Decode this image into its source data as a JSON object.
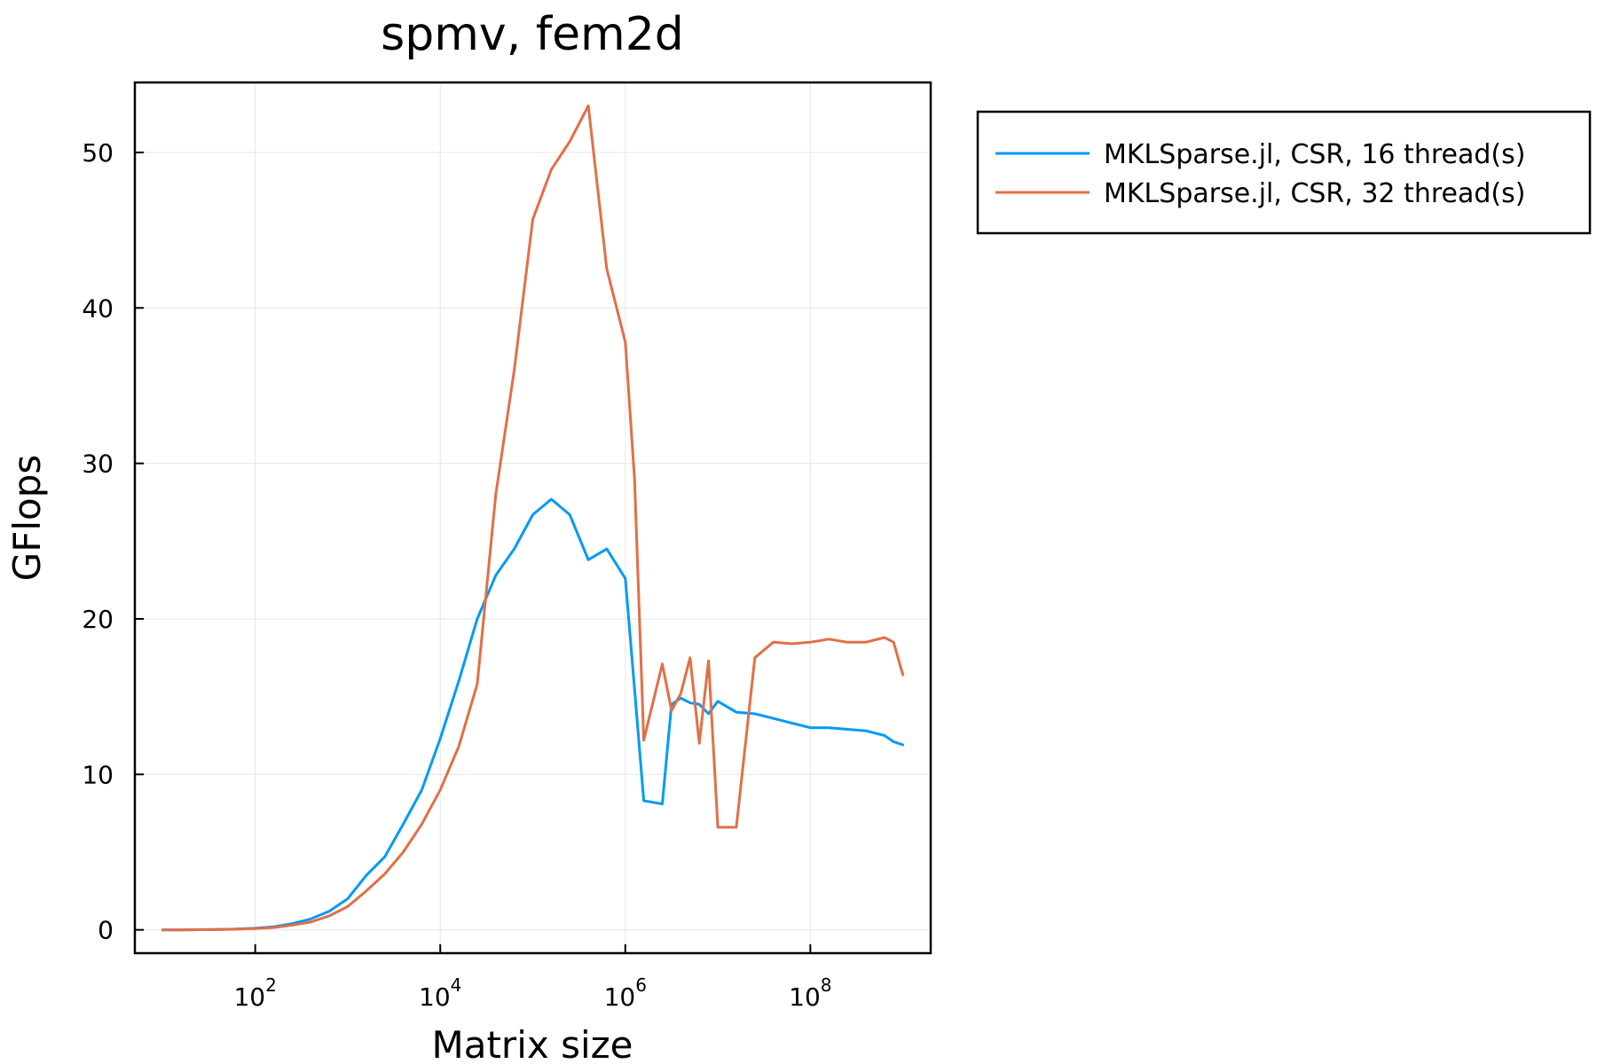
{
  "chart_data": {
    "type": "line",
    "title": "spmv, fem2d",
    "xlabel": "Matrix size",
    "ylabel": "GFlops",
    "xscale": "log10",
    "xlim": [
      5,
      2000000000
    ],
    "ylim": [
      -1.5,
      54.5
    ],
    "xticks": [
      {
        "value": 100,
        "base": "10",
        "exp": "2"
      },
      {
        "value": 10000,
        "base": "10",
        "exp": "4"
      },
      {
        "value": 1000000,
        "base": "10",
        "exp": "6"
      },
      {
        "value": 100000000,
        "base": "10",
        "exp": "8"
      }
    ],
    "yticks": [
      0,
      10,
      20,
      30,
      40,
      50
    ],
    "grid": true,
    "legend_position": "outside-top-right",
    "series": [
      {
        "name": "MKLSparse.jl, CSR, 16 thread(s)",
        "color": "#009af9",
        "x": [
          10,
          16,
          25,
          40,
          63,
          100,
          158,
          251,
          398,
          631,
          1000,
          1585,
          2512,
          3981,
          6310,
          10000,
          15850,
          25120,
          39810,
          63100,
          100000,
          158500,
          251200,
          398100,
          631000,
          1000000,
          1259000,
          1585000,
          2512000,
          3162000,
          3981000,
          5012000,
          6310000,
          7943000,
          10000000,
          15850000,
          25120000,
          39810000,
          63100000,
          100000000,
          158500000,
          251200000,
          398100000,
          631000000,
          794300000,
          1000000000
        ],
        "y": [
          0,
          0,
          0.01,
          0.02,
          0.05,
          0.1,
          0.2,
          0.4,
          0.7,
          1.2,
          2.0,
          3.5,
          4.7,
          6.8,
          9.0,
          12.3,
          16.0,
          20.0,
          22.8,
          24.5,
          26.7,
          27.7,
          26.7,
          23.8,
          24.5,
          22.6,
          15.5,
          8.3,
          8.1,
          14.5,
          14.9,
          14.6,
          14.5,
          13.9,
          14.7,
          14.0,
          13.9,
          13.6,
          13.3,
          13.0,
          13.0,
          12.9,
          12.8,
          12.5,
          12.1,
          11.9
        ]
      },
      {
        "name": "MKLSparse.jl, CSR, 32 thread(s)",
        "color": "#e26f46",
        "x": [
          10,
          16,
          25,
          40,
          63,
          100,
          158,
          251,
          398,
          631,
          1000,
          1585,
          2512,
          3981,
          6310,
          10000,
          15850,
          25120,
          39810,
          63100,
          100000,
          158500,
          251200,
          398100,
          631000,
          1000000,
          1259000,
          1585000,
          2512000,
          3162000,
          3981000,
          5012000,
          6310000,
          7943000,
          10000000,
          15850000,
          25120000,
          39810000,
          63100000,
          100000000,
          158500000,
          251200000,
          398100000,
          631000000,
          794300000,
          1000000000
        ],
        "y": [
          0,
          0,
          0.01,
          0.02,
          0.04,
          0.08,
          0.15,
          0.3,
          0.5,
          0.9,
          1.5,
          2.5,
          3.6,
          5.0,
          6.8,
          9.0,
          11.8,
          15.8,
          28.0,
          36.0,
          45.7,
          48.9,
          50.7,
          53.0,
          42.5,
          37.8,
          29.0,
          12.2,
          17.1,
          14.1,
          15.2,
          17.5,
          12.0,
          17.3,
          6.6,
          6.6,
          17.5,
          18.5,
          18.4,
          18.5,
          18.7,
          18.5,
          18.5,
          18.8,
          18.5,
          16.4
        ]
      }
    ]
  }
}
